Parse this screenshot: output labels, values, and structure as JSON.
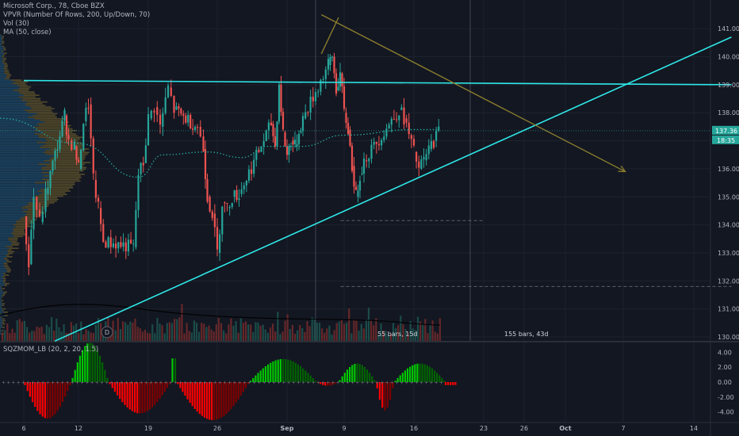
{
  "header": {
    "symbol_line": "Microsoft Corp., 78, Cboe BZX",
    "indicators": [
      "VPVR (Number Of Rows, 200, Up/Down, 70)",
      "Vol (30)",
      "MA (50, close)"
    ]
  },
  "oscillator": {
    "label": "SQZMOM_LB (20, 2, 20, 1.5)"
  },
  "colors": {
    "background": "#131722",
    "grid": "#1e222d",
    "up": "#26a69a",
    "down": "#ef5350",
    "trendline": "#2ee8e8",
    "projection": "#8a7d2c",
    "osc_up_strong": "#00c800",
    "osc_up_weak": "#006400",
    "osc_down_strong": "#ff0000",
    "osc_down_weak": "#800000",
    "price_badge": "#26a69a"
  },
  "price_badges": {
    "last": "137.36",
    "countdown": "18:35"
  },
  "annotations": {
    "bars_left": "55 bars, 15d",
    "bars_right": "155 bars, 43d",
    "dividend_marker": "D"
  },
  "chart_data": {
    "type": "candlestick",
    "title": "Microsoft Corp., 78, Cboe BZX",
    "y_axis": {
      "ticks": [
        "141.00",
        "140.00",
        "139.00",
        "138.00",
        "137.00",
        "136.00",
        "135.00",
        "134.00",
        "133.00",
        "132.00",
        "131.00",
        "130.00"
      ],
      "ylim": [
        129.9,
        141.5
      ]
    },
    "x_axis": {
      "ticks": [
        "6",
        "12",
        "19",
        "26",
        "Sep",
        "9",
        "16",
        "23",
        "26",
        "Oct",
        "7",
        "14"
      ]
    },
    "price_path": [
      {
        "p": [
          "6",
          0.0
        ],
        "v": 134.3
      },
      {
        "p": [
          "6",
          0.5
        ],
        "v": 132.6
      },
      {
        "p": [
          "6",
          1.0
        ],
        "v": 135.0
      },
      {
        "p": [
          "6",
          1.6
        ],
        "v": 134.1
      },
      {
        "p": [
          "6",
          2.2
        ],
        "v": 135.1
      },
      {
        "p": [
          "12",
          -1.4
        ],
        "v": 137.9
      },
      {
        "p": [
          "12",
          -1.0
        ],
        "v": 137.0
      },
      {
        "p": [
          "12",
          -0.4
        ],
        "v": 136.8
      },
      {
        "p": [
          "12",
          0.0
        ],
        "v": 136.0
      },
      {
        "p": [
          "12",
          0.5
        ],
        "v": 137.7
      },
      {
        "p": [
          "12",
          1.0
        ],
        "v": 138.3
      },
      {
        "p": [
          "12",
          1.5
        ],
        "v": 135.6
      },
      {
        "p": [
          "12",
          2.0
        ],
        "v": 134.6
      },
      {
        "p": [
          "12",
          2.5
        ],
        "v": 133.4
      },
      {
        "p": [
          "19",
          -1.5
        ],
        "v": 133.2
      },
      {
        "p": [
          "19",
          -1.0
        ],
        "v": 135.8
      },
      {
        "p": [
          "19",
          -0.5
        ],
        "v": 136.2
      },
      {
        "p": [
          "19",
          0.0
        ],
        "v": 137.8
      },
      {
        "p": [
          "19",
          0.6
        ],
        "v": 138.2
      },
      {
        "p": [
          "19",
          1.2
        ],
        "v": 137.5
      },
      {
        "p": [
          "19",
          2.0
        ],
        "v": 138.9
      },
      {
        "p": [
          "19",
          2.6
        ],
        "v": 138.1
      },
      {
        "p": [
          "26",
          -2.0
        ],
        "v": 137.5
      },
      {
        "p": [
          "26",
          -1.4
        ],
        "v": 136.7
      },
      {
        "p": [
          "26",
          -1.0
        ],
        "v": 135.0
      },
      {
        "p": [
          "26",
          -0.5
        ],
        "v": 134.4
      },
      {
        "p": [
          "26",
          0.0
        ],
        "v": 133.0
      },
      {
        "p": [
          "26",
          0.5
        ],
        "v": 134.8
      },
      {
        "p": [
          "26",
          1.0
        ],
        "v": 134.6
      },
      {
        "p": [
          "26",
          1.5
        ],
        "v": 135.0
      },
      {
        "p": [
          "26",
          2.2
        ],
        "v": 135.1
      },
      {
        "p": [
          "Sep",
          -1.6
        ],
        "v": 137.6
      },
      {
        "p": [
          "Sep",
          -1.2
        ],
        "v": 136.8
      },
      {
        "p": [
          "Sep",
          -0.8
        ],
        "v": 139.0
      },
      {
        "p": [
          "Sep",
          -0.4
        ],
        "v": 137.3
      },
      {
        "p": [
          "Sep",
          0.0
        ],
        "v": 136.5
      },
      {
        "p": [
          "Sep",
          0.4
        ],
        "v": 137.0
      },
      {
        "p": [
          "Sep",
          0.8
        ],
        "v": 136.8
      },
      {
        "p": [
          "Sep",
          1.2
        ],
        "v": 137.3
      },
      {
        "p": [
          "Sep",
          1.6
        ],
        "v": 137.8
      },
      {
        "p": [
          "9",
          -1.6
        ],
        "v": 139.7
      },
      {
        "p": [
          "9",
          -1.2
        ],
        "v": 140.0
      },
      {
        "p": [
          "9",
          -0.8
        ],
        "v": 138.8
      },
      {
        "p": [
          "9",
          -0.4
        ],
        "v": 139.4
      },
      {
        "p": [
          "9",
          0.0
        ],
        "v": 138.0
      },
      {
        "p": [
          "9",
          0.4
        ],
        "v": 137.4
      },
      {
        "p": [
          "9",
          0.8
        ],
        "v": 136.1
      },
      {
        "p": [
          "9",
          1.2
        ],
        "v": 135.0
      },
      {
        "p": [
          "9",
          1.6
        ],
        "v": 135.8
      },
      {
        "p": [
          "9",
          2.0
        ],
        "v": 136.3
      },
      {
        "p": [
          "16",
          -1.5
        ],
        "v": 138.1
      },
      {
        "p": [
          "16",
          -1.0
        ],
        "v": 137.8
      },
      {
        "p": [
          "16",
          -0.5
        ],
        "v": 137.2
      },
      {
        "p": [
          "16",
          0.0
        ],
        "v": 136.6
      },
      {
        "p": [
          "16",
          0.5
        ],
        "v": 136.0
      },
      {
        "p": [
          "16",
          1.0
        ],
        "v": 136.3
      },
      {
        "p": [
          "16",
          1.5
        ],
        "v": 136.7
      },
      {
        "p": [
          "16",
          2.0
        ],
        "v": 137.0
      },
      {
        "p": [
          "16",
          2.5
        ],
        "v": 137.36
      }
    ],
    "ma50": [
      {
        "p": [
          "6",
          -2.4
        ],
        "v": 137.8
      },
      {
        "p": [
          "12",
          0.0
        ],
        "v": 136.9
      },
      {
        "p": [
          "19",
          -1.0
        ],
        "v": 135.7
      },
      {
        "p": [
          "19",
          1.5
        ],
        "v": 136.5
      },
      {
        "p": [
          "26",
          -1.0
        ],
        "v": 136.6
      },
      {
        "p": [
          "26",
          2.5
        ],
        "v": 136.4
      },
      {
        "p": [
          "Sep",
          -2.0
        ],
        "v": 136.8
      },
      {
        "p": [
          "Sep",
          1.5
        ],
        "v": 136.8
      },
      {
        "p": [
          "9",
          0.0
        ],
        "v": 137.2
      },
      {
        "p": [
          "16",
          0.0
        ],
        "v": 137.4
      },
      {
        "p": [
          "16",
          2.5
        ],
        "v": 137.4
      }
    ],
    "resistance_line": [
      {
        "p": [
          "6",
          0.0
        ],
        "v": 139.15
      },
      {
        "p": [
          "14",
          3.8
        ],
        "v": 139.0
      }
    ],
    "support_line": [
      {
        "p": [
          "12",
          -2.4
        ],
        "v": 129.85
      },
      {
        "p": [
          "14",
          3.8
        ],
        "v": 140.7
      }
    ],
    "projection_arrows": [
      {
        "from": {
          "p": [
            "26",
            10.5
          ],
          "v": 140.1
        },
        "to": {
          "p": [
            "Sep",
            5.2
          ],
          "v": 141.4
        }
      },
      {
        "from": {
          "p": [
            "9",
            -2.3
          ],
          "v": 141.5
        },
        "to": {
          "p": [
            "7",
            0.2
          ],
          "v": 135.9
        }
      }
    ],
    "measure_lines": [
      {
        "from": {
          "p": [
            "Sep",
            5.4
          ],
          "v": 134.15
        },
        "to": {
          "p": [
            "23",
            0.0
          ],
          "v": 134.15
        }
      },
      {
        "from": {
          "p": [
            "Sep",
            5.4
          ],
          "v": 131.8
        },
        "to": {
          "p": [
            "14",
            3.8
          ],
          "v": 131.8
        }
      }
    ],
    "oscillator": {
      "y_ticks": [
        "4.00",
        "2.00",
        "0.00",
        "-2.00",
        "-4.00"
      ],
      "ylim": [
        -5.5,
        5.5
      ],
      "bumps": [
        {
          "from": {
            "p": [
              "6",
              0.0
            ]
          },
          "to": {
            "p": [
              "6",
              4.8
            ]
          },
          "peak": -4.9
        },
        {
          "from": {
            "p": [
              "6",
              4.8
            ]
          },
          "to": {
            "p": [
              "19",
              -4.0
            ]
          },
          "peak": 5.3
        },
        {
          "from": {
            "p": [
              "19",
              -4.0
            ]
          },
          "to": {
            "p": [
              "19",
              2.3
            ]
          },
          "peak": -4.2
        },
        {
          "from": {
            "p": [
              "19",
              2.3
            ]
          },
          "to": {
            "p": [
              "26",
              -4.1
            ]
          },
          "peak": 4.5
        },
        {
          "from": {
            "p": [
              "26",
              -4.1
            ]
          },
          "to": {
            "p": [
              "Sep",
              -3.8
            ]
          },
          "peak": -5.1
        },
        {
          "from": {
            "p": [
              "Sep",
              -3.8
            ]
          },
          "to": {
            "p": [
              "Sep",
              3.0
            ]
          },
          "peak": 3.1
        },
        {
          "from": {
            "p": [
              "Sep",
              3.0
            ]
          },
          "to": {
            "p": [
              "Sep",
              5.2
            ]
          },
          "peak": -0.5
        },
        {
          "from": {
            "p": [
              "Sep",
              5.2
            ]
          },
          "to": {
            "p": [
              "9",
              3.2
            ]
          },
          "peak": 2.5
        },
        {
          "from": {
            "p": [
              "9",
              3.2
            ]
          },
          "to": {
            "p": [
              "16",
              -2.0
            ]
          },
          "peak": -3.8
        },
        {
          "from": {
            "p": [
              "16",
              -2.0
            ]
          },
          "to": {
            "p": [
              "16",
              3.2
            ]
          },
          "peak": 2.5
        }
      ],
      "tail": {
        "from": {
          "p": [
            "16",
            3.2
          ]
        },
        "to": {
          "p": [
            "16",
            4.4
          ]
        },
        "value": -0.4
      }
    }
  }
}
